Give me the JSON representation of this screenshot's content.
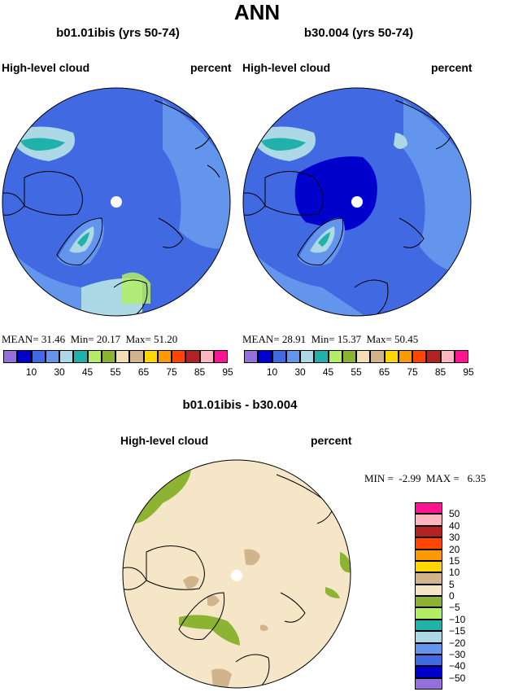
{
  "title": "ANN",
  "panels": [
    {
      "case": "b01.01ibis (yrs 50-74)",
      "variable": "High-level cloud",
      "units": "percent",
      "stats": {
        "mean_label": "MEAN=",
        "mean": "31.46",
        "min_label": "Min=",
        "min": "20.17",
        "max_label": "Max=",
        "max": "51.20"
      }
    },
    {
      "case": "b30.004 (yrs 50-74)",
      "variable": "High-level cloud",
      "units": "percent",
      "stats": {
        "mean_label": "MEAN=",
        "mean": "28.91",
        "min_label": "Min=",
        "min": "15.37",
        "max_label": "Max=",
        "max": "50.45"
      }
    }
  ],
  "colorbar_top": {
    "colors": [
      "#9370db",
      "#0000cd",
      "#4169e1",
      "#6495ed",
      "#add8e6",
      "#20b2aa",
      "#b4ee64",
      "#8cb432",
      "#f5deb3",
      "#d2b48c",
      "#ffd700",
      "#ff9900",
      "#ff4500",
      "#b22222",
      "#ffb6c1",
      "#ff1493"
    ],
    "labels": [
      "10",
      "30",
      "45",
      "55",
      "65",
      "75",
      "85",
      "95"
    ]
  },
  "diff": {
    "title": "b01.01ibis - b30.004",
    "variable": "High-level cloud",
    "units": "percent",
    "stats": {
      "min_label": "MIN =",
      "min": "-2.99",
      "max_label": "MAX =",
      "max": "6.35"
    },
    "colorbar": {
      "colors": [
        "#ff1493",
        "#ffb6c1",
        "#b22222",
        "#ff4500",
        "#ff9900",
        "#ffd700",
        "#d2b48c",
        "#f5e6c8",
        "#8cb432",
        "#b4ee64",
        "#20b2aa",
        "#add8e6",
        "#6495ed",
        "#4169e1",
        "#0000cd",
        "#9370db"
      ],
      "labels": [
        "50",
        "40",
        "30",
        "20",
        "15",
        "10",
        "5",
        "0",
        "−5",
        "−10",
        "−15",
        "−20",
        "−30",
        "−40",
        "−50"
      ]
    }
  }
}
